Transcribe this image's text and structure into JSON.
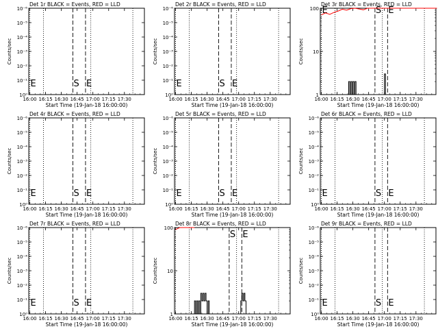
{
  "chart_data": [
    {
      "type": "line",
      "title": "Det 1r BLACK = Events, RED = LLD",
      "xlabel": "Start Time (19-Jan-18 16:00:00)",
      "ylabel": "Counts/sec",
      "yscale": "exp",
      "yticks": [
        "10⁰",
        "10⁻¹",
        "10⁻²",
        "10⁻³",
        "10⁻⁴",
        "10⁻⁵",
        "10⁻⁶"
      ],
      "xticks": [
        "16:00",
        "16:15",
        "16:30",
        "16:45",
        "17:00",
        "17:15",
        "17:30"
      ],
      "xlim": [
        0,
        110
      ],
      "dotted_lines": [
        0,
        13,
        58,
        98
      ],
      "dashed_lines": [
        41,
        53
      ],
      "markers": [
        {
          "label": "E",
          "x": 0
        },
        {
          "label": "S",
          "x": 41
        },
        {
          "label": "E",
          "x": 53
        }
      ],
      "series": []
    },
    {
      "type": "line",
      "title": "Det 2r BLACK = Events, RED = LLD",
      "xlabel": "Start Time (19-Jan-18 16:00:00)",
      "ylabel": "Counts/sec",
      "yscale": "exp",
      "yticks": [
        "10⁰",
        "10⁻¹",
        "10⁻²",
        "10⁻³",
        "10⁻⁴",
        "10⁻⁵",
        "10⁻⁶"
      ],
      "xticks": [
        "16:00",
        "16:15",
        "16:30",
        "16:45",
        "17:00",
        "17:15",
        "17:30"
      ],
      "xlim": [
        0,
        110
      ],
      "dotted_lines": [
        0,
        13,
        58,
        98
      ],
      "dashed_lines": [
        41,
        53
      ],
      "markers": [
        {
          "label": "E",
          "x": 0
        },
        {
          "label": "S",
          "x": 41
        },
        {
          "label": "E",
          "x": 53
        }
      ],
      "series": []
    },
    {
      "type": "line",
      "title": "Det 3r BLACK = Events, RED = LLD",
      "xlabel": "Start Time (19-Jan-18 16:00:00)",
      "ylabel": "Counts/sec",
      "yscale": "log",
      "yticks": [
        "1",
        "10",
        "100"
      ],
      "ylim": [
        1,
        100
      ],
      "xticks": [
        "16:00",
        "16:15",
        "16:30",
        "16:45",
        "17:00",
        "17:15",
        "17:30"
      ],
      "xlim": [
        0,
        110
      ],
      "dotted_lines": [
        0,
        13,
        58,
        98
      ],
      "dashed_lines": [
        51,
        63
      ],
      "markers": [
        {
          "label": "E",
          "x": 0
        },
        {
          "label": "S",
          "x": 51
        },
        {
          "label": "E",
          "x": 63
        }
      ],
      "series": [
        {
          "color": "#ff0000",
          "x": [
            0,
            4,
            8,
            12,
            16,
            20,
            24,
            28,
            32,
            36,
            40,
            44,
            48,
            52,
            56,
            60,
            64,
            68,
            72,
            76,
            80,
            84,
            88,
            92,
            96,
            100,
            104,
            108,
            110
          ],
          "y": [
            70,
            78,
            72,
            80,
            86,
            95,
            90,
            98,
            100,
            96,
            92,
            100,
            100,
            100,
            100,
            100,
            100,
            100,
            100,
            100,
            100,
            100,
            100,
            100,
            100,
            100,
            100,
            100,
            100
          ]
        },
        {
          "color": "#000000",
          "x": [
            26,
            26,
            27,
            27,
            28,
            28,
            29,
            29,
            30,
            30,
            31,
            31,
            32,
            32,
            33,
            33,
            34,
            60,
            60,
            61,
            61,
            62,
            62
          ],
          "y": [
            1,
            2,
            2,
            1,
            1,
            2,
            2,
            1,
            1,
            2,
            2,
            1,
            1,
            2,
            2,
            1,
            1,
            1,
            3,
            3,
            1,
            1,
            1
          ]
        }
      ]
    },
    {
      "type": "line",
      "title": "Det 4r BLACK = Events, RED = LLD",
      "xlabel": "Start Time (19-Jan-18 16:00:00)",
      "ylabel": "Counts/sec",
      "yscale": "exp",
      "yticks": [
        "10⁰",
        "10⁻¹",
        "10⁻²",
        "10⁻³",
        "10⁻⁴",
        "10⁻⁵",
        "10⁻⁶"
      ],
      "xticks": [
        "16:00",
        "16:15",
        "16:30",
        "16:45",
        "17:00",
        "17:15",
        "17:30"
      ],
      "xlim": [
        0,
        110
      ],
      "dotted_lines": [
        0,
        13,
        58,
        98
      ],
      "dashed_lines": [
        41,
        53
      ],
      "markers": [
        {
          "label": "E",
          "x": 0
        },
        {
          "label": "S",
          "x": 41
        },
        {
          "label": "E",
          "x": 53
        }
      ],
      "series": []
    },
    {
      "type": "line",
      "title": "Det 5r BLACK = Events, RED = LLD",
      "xlabel": "Start Time (19-Jan-18 16:00:00)",
      "ylabel": "Counts/sec",
      "yscale": "exp",
      "yticks": [
        "10⁰",
        "10⁻¹",
        "10⁻²",
        "10⁻³",
        "10⁻⁴",
        "10⁻⁵",
        "10⁻⁶"
      ],
      "xticks": [
        "16:00",
        "16:15",
        "16:30",
        "16:45",
        "17:00",
        "17:15",
        "17:30"
      ],
      "xlim": [
        0,
        110
      ],
      "dotted_lines": [
        0,
        13,
        58,
        98
      ],
      "dashed_lines": [
        41,
        53
      ],
      "markers": [
        {
          "label": "E",
          "x": 0
        },
        {
          "label": "S",
          "x": 41
        },
        {
          "label": "E",
          "x": 53
        }
      ],
      "series": []
    },
    {
      "type": "line",
      "title": "Det 6r BLACK = Events, RED = LLD",
      "xlabel": "Start Time (19-Jan-18 16:00:00)",
      "ylabel": "Counts/sec",
      "yscale": "exp",
      "yticks": [
        "10⁰",
        "10⁻¹",
        "10⁻²",
        "10⁻³",
        "10⁻⁴",
        "10⁻⁵",
        "10⁻⁶"
      ],
      "xticks": [
        "16:00",
        "16:15",
        "16:30",
        "16:45",
        "17:00",
        "17:15",
        "17:30"
      ],
      "xlim": [
        0,
        110
      ],
      "dotted_lines": [
        0,
        13,
        58,
        98
      ],
      "dashed_lines": [
        51,
        63
      ],
      "markers": [
        {
          "label": "E",
          "x": 0
        },
        {
          "label": "S",
          "x": 51
        },
        {
          "label": "E",
          "x": 63
        }
      ],
      "series": []
    },
    {
      "type": "line",
      "title": "Det 7r BLACK = Events, RED = LLD",
      "xlabel": "Start Time (19-Jan-18 16:00:00)",
      "ylabel": "Counts/sec",
      "yscale": "exp",
      "yticks": [
        "10⁰",
        "10⁻¹",
        "10⁻²",
        "10⁻³",
        "10⁻⁴",
        "10⁻⁵",
        "10⁻⁶"
      ],
      "xticks": [
        "16:00",
        "16:15",
        "16:30",
        "16:45",
        "17:00",
        "17:15",
        "17:30"
      ],
      "xlim": [
        0,
        110
      ],
      "dotted_lines": [
        0,
        13,
        58,
        98
      ],
      "dashed_lines": [
        41,
        53
      ],
      "markers": [
        {
          "label": "E",
          "x": 0
        },
        {
          "label": "S",
          "x": 41
        },
        {
          "label": "E",
          "x": 53
        }
      ],
      "series": []
    },
    {
      "type": "line",
      "title": "Det 8r BLACK = Events, RED = LLD",
      "xlabel": "Start Time (19-Jan-18 16:00:00)",
      "ylabel": "Counts/sec",
      "yscale": "log",
      "yticks": [
        "1",
        "10",
        "100"
      ],
      "ylim": [
        1,
        100
      ],
      "xticks": [
        "16:00",
        "16:15",
        "16:30",
        "16:45",
        "17:00",
        "17:15",
        "17:30"
      ],
      "xlim": [
        0,
        110
      ],
      "dotted_lines": [
        0,
        13,
        58,
        98
      ],
      "dashed_lines": [
        51,
        63
      ],
      "markers": [
        {
          "label": "S",
          "x": 51
        },
        {
          "label": "E",
          "x": 63
        }
      ],
      "series": [
        {
          "color": "#ff0000",
          "x": [
            0,
            2,
            4,
            6,
            8,
            10,
            12,
            14,
            16,
            18
          ],
          "y": [
            90,
            95,
            100,
            100,
            100,
            100,
            100,
            100,
            100,
            100
          ]
        },
        {
          "color": "#000000",
          "x": [
            18,
            18,
            19,
            19,
            20,
            20,
            21,
            21,
            22,
            22,
            23,
            23,
            24,
            24,
            25,
            25,
            26,
            26,
            27,
            27,
            28,
            28,
            29,
            29,
            30,
            30,
            31,
            31,
            32,
            32,
            33,
            62,
            62,
            63,
            63,
            64,
            64,
            65,
            65,
            66,
            66,
            67,
            67,
            68
          ],
          "y": [
            1,
            2,
            2,
            1,
            1,
            2,
            2,
            1,
            1,
            2,
            2,
            1,
            1,
            3,
            3,
            2,
            2,
            3,
            3,
            2,
            2,
            3,
            3,
            2,
            2,
            1,
            1,
            2,
            2,
            1,
            1,
            1,
            2,
            2,
            3,
            3,
            2,
            2,
            3,
            3,
            2,
            2,
            1,
            1
          ]
        }
      ]
    },
    {
      "type": "line",
      "title": "Det 9r BLACK = Events, RED = LLD",
      "xlabel": "Start Time (19-Jan-18 16:00:00)",
      "ylabel": "Counts/sec",
      "yscale": "exp",
      "yticks": [
        "10⁰",
        "10⁻¹",
        "10⁻²",
        "10⁻³",
        "10⁻⁴",
        "10⁻⁵",
        "10⁻⁶"
      ],
      "xticks": [
        "16:00",
        "16:15",
        "16:30",
        "16:45",
        "17:00",
        "17:15",
        "17:30"
      ],
      "xlim": [
        0,
        110
      ],
      "dotted_lines": [
        0,
        13,
        58,
        98
      ],
      "dashed_lines": [
        51,
        63
      ],
      "markers": [
        {
          "label": "E",
          "x": 0
        },
        {
          "label": "S",
          "x": 51
        },
        {
          "label": "E",
          "x": 63
        }
      ],
      "series": []
    }
  ]
}
